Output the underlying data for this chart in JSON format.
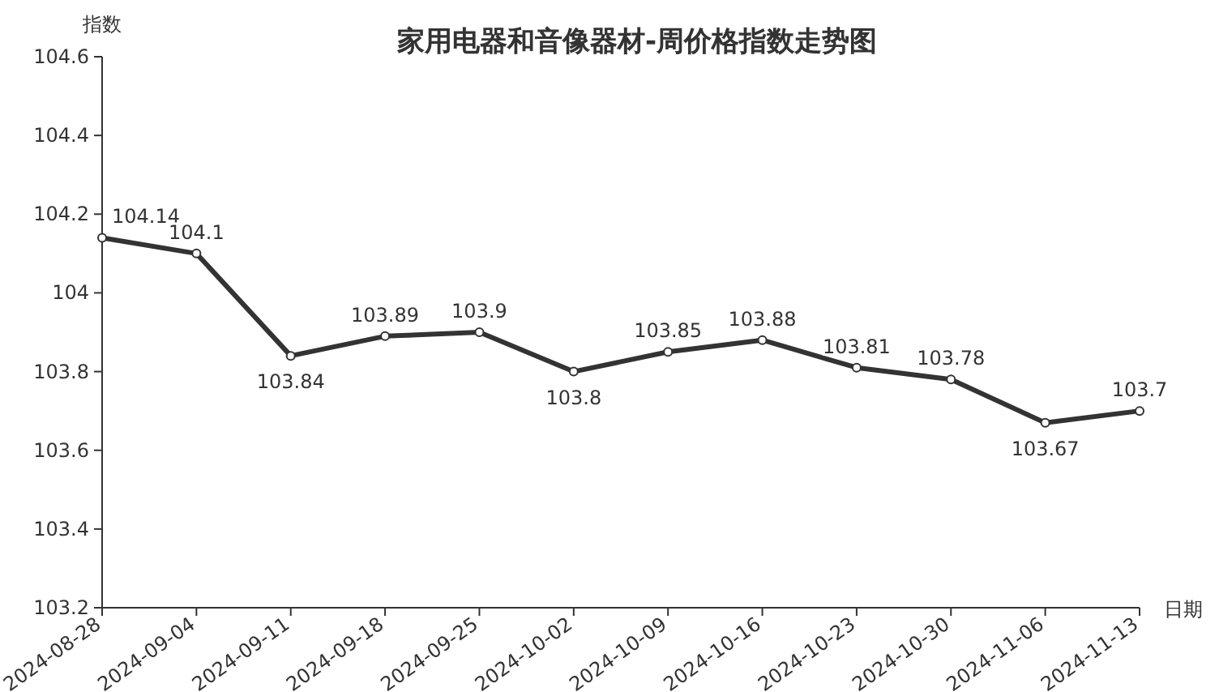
{
  "chart_data": {
    "type": "line",
    "title": "家用电器和音像器材-周价格指数走势图",
    "ylabel": "指数",
    "xlabel": "日期",
    "categories": [
      "2024-08-28",
      "2024-09-04",
      "2024-09-11",
      "2024-09-18",
      "2024-09-25",
      "2024-10-02",
      "2024-10-09",
      "2024-10-16",
      "2024-10-23",
      "2024-10-30",
      "2024-11-06",
      "2024-11-13"
    ],
    "series": [
      {
        "color": "#333333",
        "values": [
          104.14,
          104.1,
          103.84,
          103.89,
          103.9,
          103.8,
          103.85,
          103.88,
          103.81,
          103.78,
          103.67,
          103.7
        ]
      }
    ],
    "ylim": [
      103.2,
      104.6
    ],
    "yticks": [
      103.2,
      103.4,
      103.6,
      103.8,
      104,
      104.2,
      104.4,
      104.6
    ],
    "data_labels": true,
    "marker": "circle",
    "line_style": "solid",
    "grid": false
  }
}
